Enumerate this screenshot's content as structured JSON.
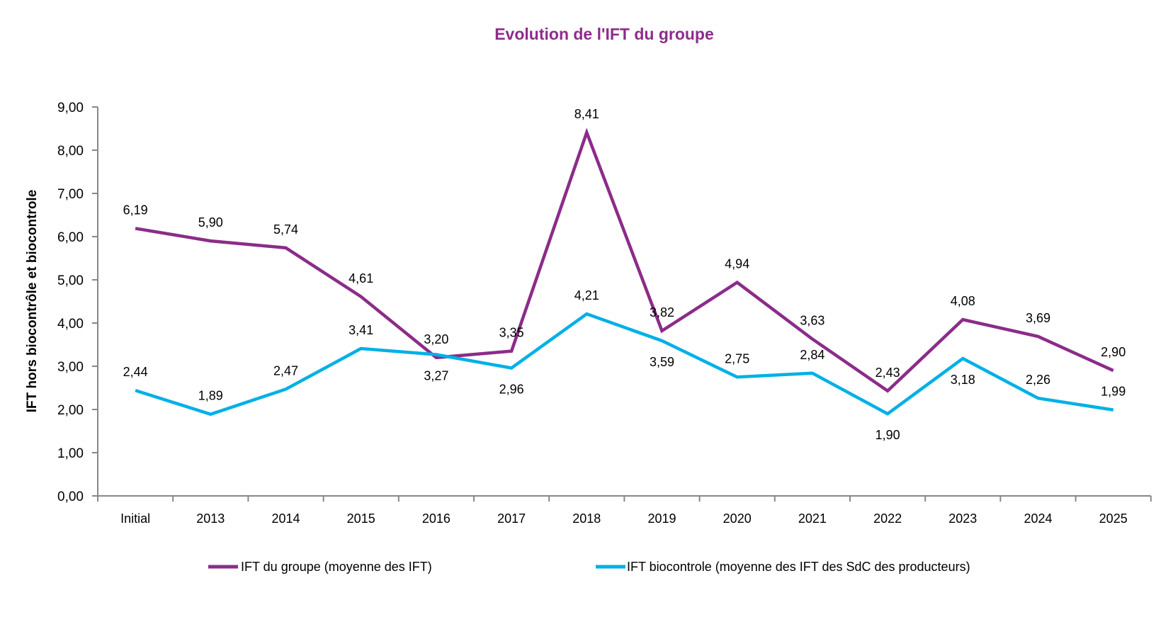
{
  "chart_data": {
    "type": "line",
    "title": "Evolution de l'IFT du groupe",
    "ylabel": "IFT  hors biocontrôle et biocontrole",
    "xlabel": "",
    "ylim": [
      0,
      9
    ],
    "yticks": [
      "0,00",
      "1,00",
      "2,00",
      "3,00",
      "4,00",
      "5,00",
      "6,00",
      "7,00",
      "8,00",
      "9,00"
    ],
    "categories": [
      "Initial",
      "2013",
      "2014",
      "2015",
      "2016",
      "2017",
      "2018",
      "2019",
      "2020",
      "2021",
      "2022",
      "2023",
      "2024",
      "2025"
    ],
    "grid": false,
    "legend_position": "bottom",
    "series": [
      {
        "name": "IFT du groupe (moyenne des IFT)",
        "color": "#8B2C89",
        "values": [
          6.19,
          5.9,
          5.74,
          4.61,
          3.2,
          3.35,
          8.41,
          3.82,
          4.94,
          3.63,
          2.43,
          4.08,
          3.69,
          2.9
        ],
        "labels": [
          "6,19",
          "5,90",
          "5,74",
          "4,61",
          "3,20",
          "3,35",
          "8,41",
          "3,82",
          "4,94",
          "3,63",
          "2,43",
          "4,08",
          "3,69",
          "2,90"
        ]
      },
      {
        "name": "IFT biocontrole (moyenne des IFT des SdC des producteurs)",
        "color": "#00B0E6",
        "values": [
          2.44,
          1.89,
          2.47,
          3.41,
          3.27,
          2.96,
          4.21,
          3.59,
          2.75,
          2.84,
          1.9,
          3.18,
          2.26,
          1.99
        ],
        "labels": [
          "2,44",
          "1,89",
          "2,47",
          "3,41",
          "3,27",
          "2,96",
          "4,21",
          "3,59",
          "2,75",
          "2,84",
          "1,90",
          "3,18",
          "2,26",
          "1,99"
        ]
      }
    ]
  }
}
